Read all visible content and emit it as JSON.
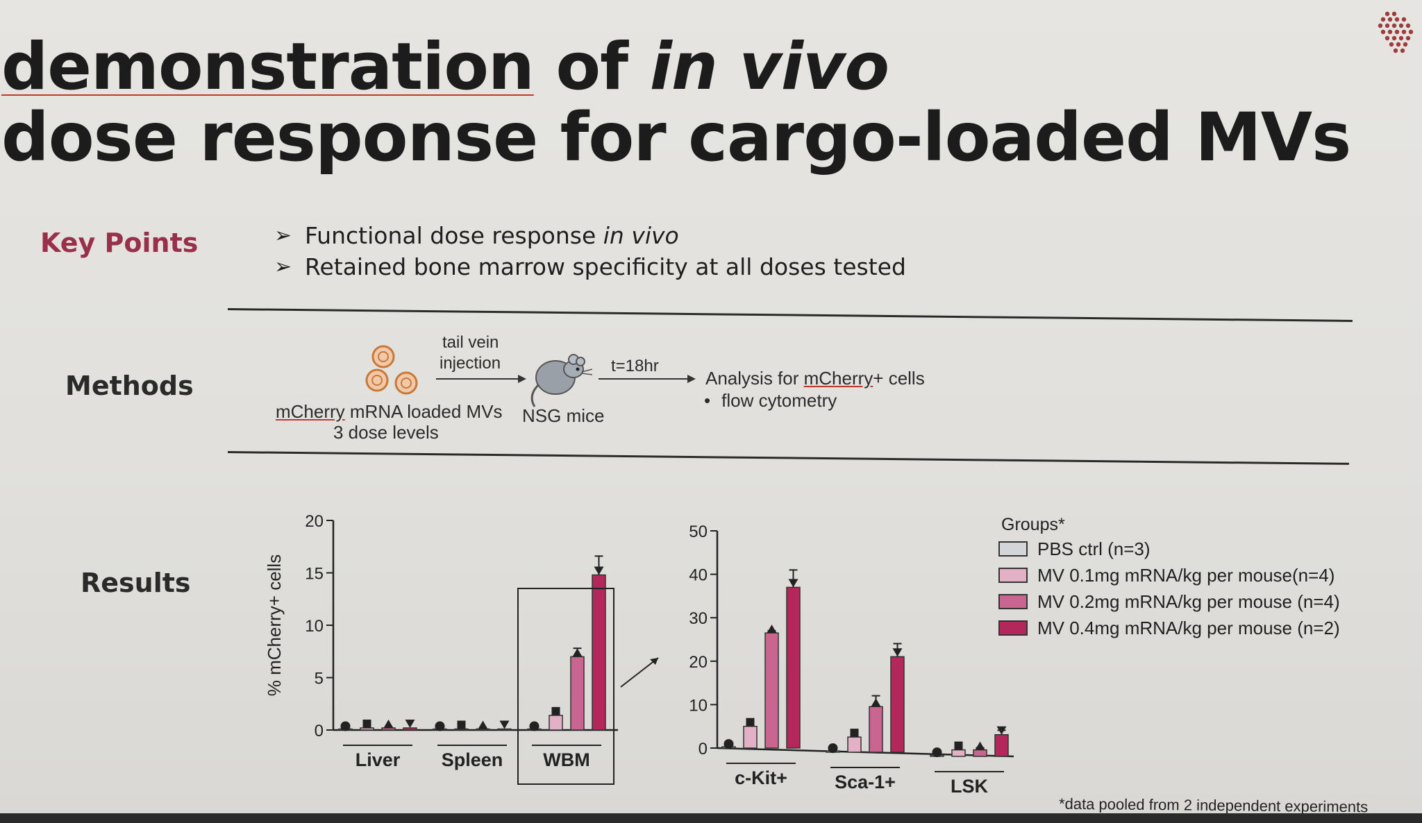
{
  "slide": {
    "title_line1_part1": "demonstration",
    "title_line1_part2": " of ",
    "title_line1_italic": "in vivo",
    "title_line2": "dose response for cargo-loaded MVs"
  },
  "key_points": {
    "label": "Key Points",
    "items": [
      {
        "text": "Functional dose response ",
        "italic": "in vivo"
      },
      {
        "text": "Retained bone marrow specificity at all doses tested",
        "italic": ""
      }
    ]
  },
  "methods": {
    "label": "Methods",
    "step1_underlined": "mCherry",
    "step1_rest": " mRNA loaded MVs",
    "step1_sub": "3 dose levels",
    "arrow1_label_line1": "tail vein",
    "arrow1_label_line2": "injection",
    "step2": "NSG mice",
    "arrow2_label": "t=18hr",
    "step3_prefix": "Analysis for ",
    "step3_underlined": "mCherry",
    "step3_suffix": "+ cells",
    "step3_bullet": "flow cytometry"
  },
  "results": {
    "label": "Results"
  },
  "footnote": "*data pooled from 2 independent experiments",
  "colors": {
    "pbs": "#d3d5d8",
    "mv01": "#e3b1c6",
    "mv02": "#c9668f",
    "mv04": "#b3275b",
    "accent_red": "#9a2f4a"
  },
  "chart_data": [
    {
      "type": "bar",
      "ylabel": "% mCherry+ cells",
      "ylim": [
        0,
        20
      ],
      "yticks": [
        0,
        5,
        10,
        15,
        20
      ],
      "categories": [
        "Liver",
        "Spleen",
        "WBM"
      ],
      "highlight_box_category": "WBM",
      "series": [
        {
          "name": "PBS ctrl (n=3)",
          "values": [
            0.1,
            0.1,
            0.1
          ]
        },
        {
          "name": "MV 0.1mg mRNA/kg per mouse(n=4)",
          "values": [
            0.2,
            0.1,
            1.4
          ]
        },
        {
          "name": "MV 0.2mg mRNA/kg per mouse (n=4)",
          "values": [
            0.2,
            0.1,
            7.0
          ]
        },
        {
          "name": "MV 0.4mg mRNA/kg per mouse (n=2)",
          "values": [
            0.2,
            0.1,
            14.8
          ]
        }
      ],
      "errors": [
        [
          0,
          0,
          0
        ],
        [
          0,
          0,
          0.6
        ],
        [
          0,
          0,
          0.8
        ],
        [
          0,
          0,
          1.8
        ]
      ]
    },
    {
      "type": "bar",
      "ylabel": "",
      "ylim": [
        0,
        50
      ],
      "yticks": [
        0,
        10,
        20,
        30,
        40,
        50
      ],
      "categories": [
        "c-Kit+",
        "Sca-1+",
        "LSK"
      ],
      "series": [
        {
          "name": "PBS ctrl (n=3)",
          "values": [
            0.3,
            0.3,
            0.3
          ]
        },
        {
          "name": "MV 0.1mg mRNA/kg per mouse(n=4)",
          "values": [
            5.0,
            3.5,
            1.5
          ]
        },
        {
          "name": "MV 0.2mg mRNA/kg per mouse (n=4)",
          "values": [
            26.5,
            10.5,
            1.5
          ]
        },
        {
          "name": "MV 0.4mg mRNA/kg per mouse (n=2)",
          "values": [
            37.0,
            22.0,
            5.0
          ]
        }
      ],
      "errors": [
        [
          0,
          0,
          0
        ],
        [
          1.5,
          1.5,
          0.5
        ],
        [
          0.5,
          2.5,
          0.5
        ],
        [
          4.0,
          3.0,
          1.0
        ]
      ]
    }
  ],
  "legend": {
    "title": "Groups*",
    "items": [
      {
        "label": "PBS ctrl (n=3)",
        "color": "#d3d5d8"
      },
      {
        "label": "MV 0.1mg mRNA/kg per mouse(n=4)",
        "color": "#e3b1c6"
      },
      {
        "label": "MV 0.2mg mRNA/kg per mouse (n=4)",
        "color": "#c9668f"
      },
      {
        "label": "MV 0.4mg mRNA/kg per mouse (n=2)",
        "color": "#b3275b"
      }
    ]
  }
}
